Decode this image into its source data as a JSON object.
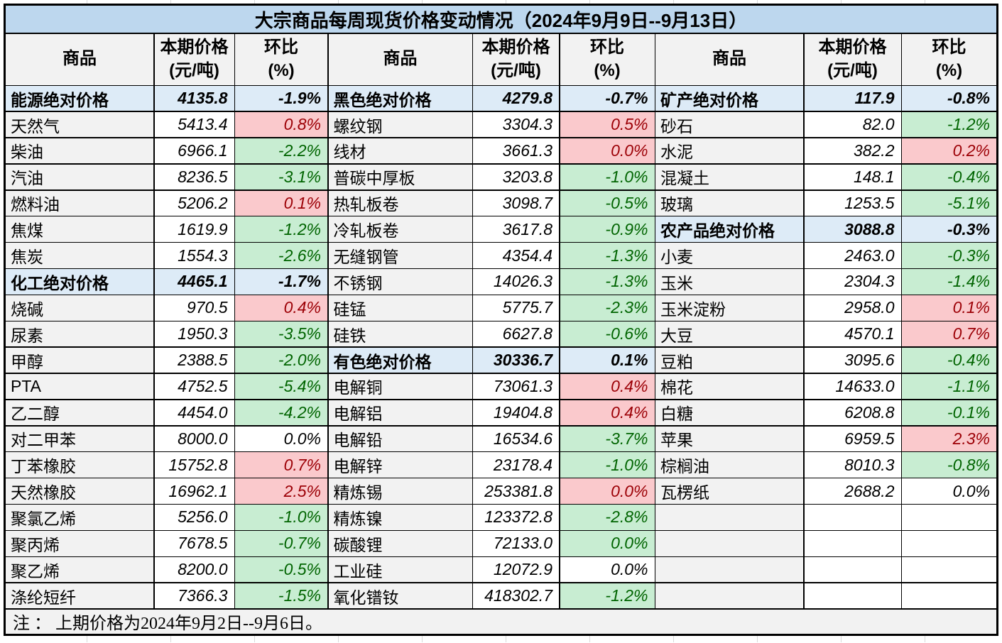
{
  "colors": {
    "title_bg": "#BDD7EE",
    "header_bg": "#F2F2F2",
    "section_row_bg": "#DDEBF7",
    "name_cell_bg": "#F2F2F2",
    "cell_bg": "#FFFFFF",
    "up_bg": "#FAC9CC",
    "up_text": "#9C0006",
    "down_bg": "#C8EDD2",
    "down_text": "#006400",
    "border": "#000000",
    "note_bg": "#F2F2F2",
    "faint_gridline": "#D9D9D9"
  },
  "chart_data": {
    "type": "table",
    "title": "大宗商品每周现货价格变动情况（2024年9月9日--9月13日）",
    "note": "注 ： 上期价格为2024年9月2日--9月6日。",
    "header": {
      "commodity": "商品",
      "price_line1": "本期价格",
      "price_line2": "(元/吨)",
      "pct_line1": "环比",
      "pct_line2": "(%)"
    },
    "column_headers": [
      "商品",
      "本期价格(元/吨)",
      "环比(%)"
    ],
    "style_legend": {
      "section": "blue bold subtotal row",
      "up": "pink cell, dark red text (price up)",
      "down": "green cell, dark green text (price down)",
      "flat": "white cell, black text (unchanged)",
      "empty": "empty cell"
    },
    "groups": [
      {
        "rows": [
          {
            "name": "能源绝对价格",
            "price": "4135.8",
            "pct": "-1.9%",
            "style": "section"
          },
          {
            "name": "天然气",
            "price": "5413.4",
            "pct": "0.8%",
            "style": "up"
          },
          {
            "name": "柴油",
            "price": "6966.1",
            "pct": "-2.2%",
            "style": "down"
          },
          {
            "name": "汽油",
            "price": "8236.5",
            "pct": "-3.1%",
            "style": "down"
          },
          {
            "name": "燃料油",
            "price": "5206.2",
            "pct": "0.1%",
            "style": "up"
          },
          {
            "name": "焦煤",
            "price": "1619.9",
            "pct": "-1.2%",
            "style": "down"
          },
          {
            "name": "焦炭",
            "price": "1554.3",
            "pct": "-2.6%",
            "style": "down"
          },
          {
            "name": "化工绝对价格",
            "price": "4465.1",
            "pct": "-1.7%",
            "style": "section"
          },
          {
            "name": "烧碱",
            "price": "970.5",
            "pct": "0.4%",
            "style": "up"
          },
          {
            "name": "尿素",
            "price": "1950.3",
            "pct": "-3.5%",
            "style": "down"
          },
          {
            "name": "甲醇",
            "price": "2388.5",
            "pct": "-2.0%",
            "style": "down"
          },
          {
            "name": "PTA",
            "price": "4752.5",
            "pct": "-5.4%",
            "style": "down"
          },
          {
            "name": "乙二醇",
            "price": "4454.0",
            "pct": "-4.2%",
            "style": "down"
          },
          {
            "name": "对二甲苯",
            "price": "8000.0",
            "pct": "0.0%",
            "style": "flat"
          },
          {
            "name": "丁苯橡胶",
            "price": "15752.8",
            "pct": "0.7%",
            "style": "up"
          },
          {
            "name": "天然橡胶",
            "price": "16962.1",
            "pct": "2.5%",
            "style": "up"
          },
          {
            "name": "聚氯乙烯",
            "price": "5256.0",
            "pct": "-1.0%",
            "style": "down"
          },
          {
            "name": "聚丙烯",
            "price": "7678.5",
            "pct": "-0.7%",
            "style": "down"
          },
          {
            "name": "聚乙烯",
            "price": "8200.0",
            "pct": "-0.5%",
            "style": "down"
          },
          {
            "name": "涤纶短纤",
            "price": "7366.3",
            "pct": "-1.5%",
            "style": "down"
          }
        ]
      },
      {
        "rows": [
          {
            "name": "黑色绝对价格",
            "price": "4279.8",
            "pct": "-0.7%",
            "style": "section"
          },
          {
            "name": "螺纹钢",
            "price": "3304.3",
            "pct": "0.5%",
            "style": "up"
          },
          {
            "name": "线材",
            "price": "3661.3",
            "pct": "0.0%",
            "style": "up"
          },
          {
            "name": "普碳中厚板",
            "price": "3203.8",
            "pct": "-1.0%",
            "style": "down"
          },
          {
            "name": "热轧板卷",
            "price": "3098.7",
            "pct": "-0.5%",
            "style": "down"
          },
          {
            "name": "冷轧板卷",
            "price": "3617.8",
            "pct": "-0.9%",
            "style": "down"
          },
          {
            "name": "无缝钢管",
            "price": "4354.4",
            "pct": "-1.3%",
            "style": "down"
          },
          {
            "name": "不锈钢",
            "price": "14026.3",
            "pct": "-1.3%",
            "style": "down"
          },
          {
            "name": "硅锰",
            "price": "5775.7",
            "pct": "-2.3%",
            "style": "down"
          },
          {
            "name": "硅铁",
            "price": "6627.8",
            "pct": "-0.6%",
            "style": "down"
          },
          {
            "name": "有色绝对价格",
            "price": "30336.7",
            "pct": "0.1%",
            "style": "section"
          },
          {
            "name": "电解铜",
            "price": "73061.3",
            "pct": "0.4%",
            "style": "up"
          },
          {
            "name": "电解铝",
            "price": "19404.8",
            "pct": "0.4%",
            "style": "up"
          },
          {
            "name": "电解铅",
            "price": "16534.6",
            "pct": "-3.7%",
            "style": "down"
          },
          {
            "name": "电解锌",
            "price": "23178.4",
            "pct": "-1.0%",
            "style": "down"
          },
          {
            "name": "精炼锡",
            "price": "253381.8",
            "pct": "0.0%",
            "style": "up"
          },
          {
            "name": "精炼镍",
            "price": "123372.8",
            "pct": "-2.8%",
            "style": "down"
          },
          {
            "name": "碳酸锂",
            "price": "72133.0",
            "pct": "0.0%",
            "style": "down"
          },
          {
            "name": "工业硅",
            "price": "12072.9",
            "pct": "0.0%",
            "style": "flat"
          },
          {
            "name": "氧化镨钕",
            "price": "418302.7",
            "pct": "-1.2%",
            "style": "down"
          }
        ]
      },
      {
        "rows": [
          {
            "name": "矿产绝对价格",
            "price": "117.9",
            "pct": "-0.8%",
            "style": "section"
          },
          {
            "name": "砂石",
            "price": "82.0",
            "pct": "-1.2%",
            "style": "down"
          },
          {
            "name": "水泥",
            "price": "382.2",
            "pct": "0.2%",
            "style": "up"
          },
          {
            "name": "混凝土",
            "price": "148.1",
            "pct": "-0.4%",
            "style": "down"
          },
          {
            "name": "玻璃",
            "price": "1253.5",
            "pct": "-5.1%",
            "style": "down"
          },
          {
            "name": "农产品绝对价格",
            "price": "3088.8",
            "pct": "-0.3%",
            "style": "section"
          },
          {
            "name": "小麦",
            "price": "2463.0",
            "pct": "-0.3%",
            "style": "down"
          },
          {
            "name": "玉米",
            "price": "2304.3",
            "pct": "-1.4%",
            "style": "down"
          },
          {
            "name": "玉米淀粉",
            "price": "2958.0",
            "pct": "0.1%",
            "style": "up"
          },
          {
            "name": "大豆",
            "price": "4570.1",
            "pct": "0.7%",
            "style": "up"
          },
          {
            "name": "豆粕",
            "price": "3095.6",
            "pct": "-0.4%",
            "style": "down"
          },
          {
            "name": "棉花",
            "price": "14633.0",
            "pct": "-1.1%",
            "style": "down"
          },
          {
            "name": "白糖",
            "price": "6208.8",
            "pct": "-0.1%",
            "style": "down"
          },
          {
            "name": "苹果",
            "price": "6959.5",
            "pct": "2.3%",
            "style": "up"
          },
          {
            "name": "棕榈油",
            "price": "8010.3",
            "pct": "-0.8%",
            "style": "down"
          },
          {
            "name": "瓦楞纸",
            "price": "2688.2",
            "pct": "0.0%",
            "style": "flat"
          },
          {
            "name": "",
            "price": "",
            "pct": "",
            "style": "empty"
          },
          {
            "name": "",
            "price": "",
            "pct": "",
            "style": "empty"
          },
          {
            "name": "",
            "price": "",
            "pct": "",
            "style": "empty"
          },
          {
            "name": "",
            "price": "",
            "pct": "",
            "style": "empty"
          }
        ]
      }
    ]
  }
}
